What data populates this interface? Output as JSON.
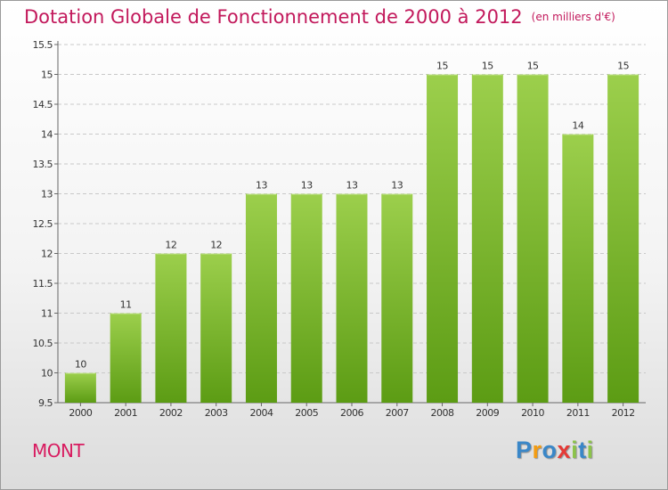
{
  "header": {
    "title": "Dotation Globale de Fonctionnement de 2000 à 2012",
    "subtitle": "(en milliers d'€)"
  },
  "footer": {
    "commune": "MONT",
    "logo_letters": [
      "P",
      "r",
      "o",
      "x",
      "i",
      "t",
      "i"
    ],
    "logo_colors": [
      "#3a87c8",
      "#f39c12",
      "#3a87c8",
      "#e53935",
      "#8bc34a",
      "#3a87c8",
      "#8bc34a"
    ]
  },
  "colors": {
    "bar_top": "#9ccf4c",
    "bar_bottom": "#5c9c14",
    "grid": "#c9c9c9",
    "title": "#c2185b"
  },
  "chart_data": {
    "type": "bar",
    "title": "Dotation Globale de Fonctionnement de 2000 à 2012",
    "subtitle": "(en milliers d'€)",
    "xlabel": "",
    "ylabel": "",
    "categories": [
      "2000",
      "2001",
      "2002",
      "2003",
      "2004",
      "2005",
      "2006",
      "2007",
      "2008",
      "2009",
      "2010",
      "2011",
      "2012"
    ],
    "values": [
      10,
      11,
      12,
      12,
      13,
      13,
      13,
      13,
      15,
      15,
      15,
      14,
      15
    ],
    "data_labels": [
      "10",
      "11",
      "12",
      "12",
      "13",
      "13",
      "13",
      "13",
      "15",
      "15",
      "15",
      "14",
      "15"
    ],
    "ylim": [
      9.5,
      15.5
    ],
    "yticks": [
      9.5,
      10,
      10.5,
      11,
      11.5,
      12,
      12.5,
      13,
      13.5,
      14,
      14.5,
      15,
      15.5
    ],
    "ytick_labels": [
      "9.5",
      "10",
      "10.5",
      "11",
      "11.5",
      "12",
      "12.5",
      "13",
      "13.5",
      "14",
      "14.5",
      "15",
      "15.5"
    ],
    "grid": "horizontal dashed",
    "legend": "none"
  }
}
